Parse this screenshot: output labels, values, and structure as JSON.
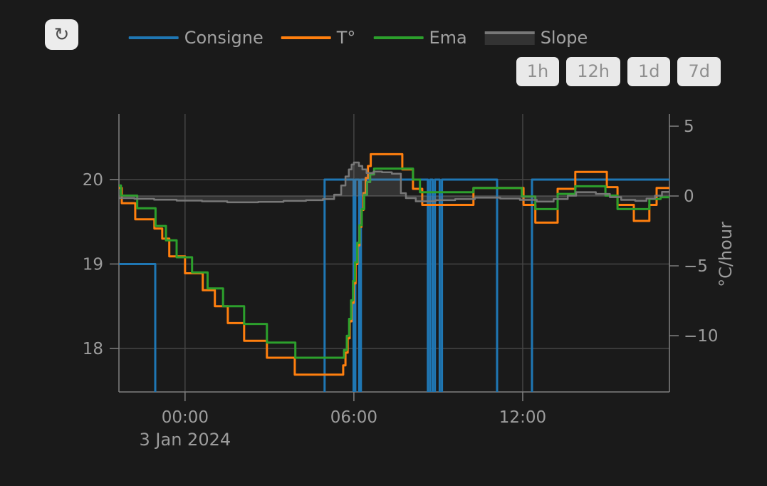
{
  "header": {
    "refresh_icon": "↻",
    "range_buttons": [
      "1h",
      "12h",
      "1d",
      "7d"
    ]
  },
  "colors": {
    "background": "#1a1a1a",
    "grid": "#444444",
    "zero_line": "#4d4d4d",
    "axis": "#7f7f7f",
    "tick_text": "#9c9c9c",
    "legend_text": "#a2a2a2",
    "button_bg": "#e9e9e9",
    "button_text": "#8f8f8f",
    "refresh_bg": "#ececec",
    "refresh_icon": "#4d4d4d",
    "consigne": "#1f77b4",
    "temperature": "#ff7f0e",
    "ema": "#2ca02c",
    "slope_line": "#787878",
    "slope_fill": "rgba(128,128,128,0.25)"
  },
  "chart_data": {
    "type": "line",
    "line_shape": "step-after",
    "grid": true,
    "legend_position": "top-center",
    "x_axis": {
      "tick_labels": [
        "00:00",
        "06:00",
        "12:00"
      ],
      "tick_values": [
        0,
        6,
        12
      ],
      "date_label": "3 Jan 2024",
      "date_tick": 0,
      "range": [
        -2.35,
        17.215
      ],
      "unit": "hours relative to 2024-01-03 00:00"
    },
    "y_axis_left": {
      "tick_labels": [
        "18",
        "19",
        "20"
      ],
      "tick_values": [
        18,
        19,
        20
      ],
      "range": [
        17.485,
        20.776
      ],
      "unit": "°C"
    },
    "y_axis_right": {
      "title": "°C/hour",
      "tick_labels": [
        "5",
        "0",
        "−5",
        "−10"
      ],
      "tick_values": [
        5,
        0,
        -5,
        -10
      ],
      "range": [
        -14.03,
        5.87
      ],
      "zeroline": true
    },
    "series": [
      {
        "name": "Consigne",
        "color": "#1f77b4",
        "axis": "left",
        "style": "line",
        "width": 3,
        "points": [
          [
            -2.35,
            19.0
          ],
          [
            -1.06,
            17.2
          ],
          [
            4.96,
            20.0
          ],
          [
            5.99,
            17.2
          ],
          [
            6.05,
            20.0
          ],
          [
            6.19,
            17.2
          ],
          [
            6.25,
            20.0
          ],
          [
            8.63,
            17.2
          ],
          [
            8.71,
            20.0
          ],
          [
            8.8,
            17.2
          ],
          [
            8.88,
            20.0
          ],
          [
            9.05,
            17.2
          ],
          [
            9.13,
            20.0
          ],
          [
            11.09,
            17.2
          ],
          [
            12.33,
            20.0
          ]
        ]
      },
      {
        "name": "T°",
        "color": "#ff7f0e",
        "axis": "left",
        "style": "line",
        "width": 3,
        "points": [
          [
            -2.35,
            19.9
          ],
          [
            -2.25,
            19.72
          ],
          [
            -1.77,
            19.53
          ],
          [
            -1.09,
            19.42
          ],
          [
            -0.81,
            19.3
          ],
          [
            -0.56,
            19.09
          ],
          [
            0.0,
            18.89
          ],
          [
            0.63,
            18.69
          ],
          [
            1.06,
            18.5
          ],
          [
            1.52,
            18.3
          ],
          [
            2.1,
            18.09
          ],
          [
            2.91,
            17.89
          ],
          [
            3.9,
            17.69
          ],
          [
            5.62,
            17.8
          ],
          [
            5.7,
            17.95
          ],
          [
            5.78,
            18.12
          ],
          [
            5.85,
            18.32
          ],
          [
            5.92,
            18.54
          ],
          [
            5.99,
            18.77
          ],
          [
            6.06,
            19.0
          ],
          [
            6.13,
            19.22
          ],
          [
            6.2,
            19.44
          ],
          [
            6.27,
            19.64
          ],
          [
            6.34,
            19.84
          ],
          [
            6.42,
            20.02
          ],
          [
            6.5,
            20.16
          ],
          [
            6.6,
            20.3
          ],
          [
            7.72,
            20.12
          ],
          [
            8.1,
            19.89
          ],
          [
            8.43,
            19.7
          ],
          [
            10.25,
            19.9
          ],
          [
            12.03,
            19.7
          ],
          [
            12.45,
            19.49
          ],
          [
            13.24,
            19.89
          ],
          [
            13.87,
            20.09
          ],
          [
            14.99,
            19.91
          ],
          [
            15.37,
            19.7
          ],
          [
            15.95,
            19.51
          ],
          [
            16.5,
            19.7
          ],
          [
            16.76,
            19.9
          ]
        ]
      },
      {
        "name": "Ema",
        "color": "#2ca02c",
        "axis": "left",
        "style": "line",
        "width": 3,
        "points": [
          [
            -2.35,
            19.93
          ],
          [
            -2.28,
            19.81
          ],
          [
            -1.7,
            19.66
          ],
          [
            -1.05,
            19.45
          ],
          [
            -0.68,
            19.28
          ],
          [
            -0.3,
            19.08
          ],
          [
            0.25,
            18.9
          ],
          [
            0.8,
            18.71
          ],
          [
            1.35,
            18.5
          ],
          [
            2.1,
            18.29
          ],
          [
            2.91,
            18.07
          ],
          [
            3.92,
            17.89
          ],
          [
            5.65,
            17.98
          ],
          [
            5.75,
            18.15
          ],
          [
            5.83,
            18.35
          ],
          [
            5.9,
            18.57
          ],
          [
            5.97,
            18.8
          ],
          [
            6.04,
            19.02
          ],
          [
            6.12,
            19.25
          ],
          [
            6.2,
            19.46
          ],
          [
            6.28,
            19.65
          ],
          [
            6.37,
            19.82
          ],
          [
            6.47,
            19.97
          ],
          [
            6.58,
            20.06
          ],
          [
            6.72,
            20.13
          ],
          [
            8.1,
            20.0
          ],
          [
            8.35,
            19.85
          ],
          [
            10.25,
            19.9
          ],
          [
            11.97,
            19.8
          ],
          [
            12.45,
            19.65
          ],
          [
            13.24,
            19.83
          ],
          [
            13.87,
            19.92
          ],
          [
            14.94,
            19.81
          ],
          [
            15.37,
            19.65
          ],
          [
            16.5,
            19.77
          ],
          [
            16.9,
            19.79
          ]
        ]
      },
      {
        "name": "Slope",
        "color": "#787878",
        "axis": "right",
        "style": "area",
        "width": 2.5,
        "fill": "rgba(128,128,128,0.25)",
        "fill_to": 0,
        "points": [
          [
            -2.35,
            -0.15
          ],
          [
            -1.8,
            -0.2
          ],
          [
            -1.1,
            -0.27
          ],
          [
            -0.3,
            -0.33
          ],
          [
            0.6,
            -0.38
          ],
          [
            1.5,
            -0.45
          ],
          [
            2.6,
            -0.42
          ],
          [
            3.5,
            -0.35
          ],
          [
            4.3,
            -0.3
          ],
          [
            4.9,
            -0.22
          ],
          [
            5.3,
            0.1
          ],
          [
            5.55,
            0.75
          ],
          [
            5.7,
            1.4
          ],
          [
            5.82,
            1.9
          ],
          [
            5.92,
            2.25
          ],
          [
            6.0,
            2.4
          ],
          [
            6.18,
            2.15
          ],
          [
            6.3,
            1.9
          ],
          [
            6.45,
            1.65
          ],
          [
            6.7,
            1.75
          ],
          [
            7.0,
            1.7
          ],
          [
            7.35,
            1.6
          ],
          [
            7.67,
            0.2
          ],
          [
            7.85,
            -0.15
          ],
          [
            8.2,
            -0.38
          ],
          [
            8.9,
            -0.3
          ],
          [
            9.6,
            -0.22
          ],
          [
            10.3,
            -0.12
          ],
          [
            11.2,
            -0.18
          ],
          [
            11.9,
            -0.28
          ],
          [
            12.5,
            -0.4
          ],
          [
            13.1,
            -0.22
          ],
          [
            13.6,
            0.02
          ],
          [
            13.9,
            0.28
          ],
          [
            14.6,
            0.15
          ],
          [
            15.1,
            -0.08
          ],
          [
            15.5,
            -0.28
          ],
          [
            16.0,
            -0.35
          ],
          [
            16.4,
            -0.18
          ],
          [
            16.7,
            0.02
          ],
          [
            16.95,
            0.3
          ]
        ]
      }
    ]
  }
}
